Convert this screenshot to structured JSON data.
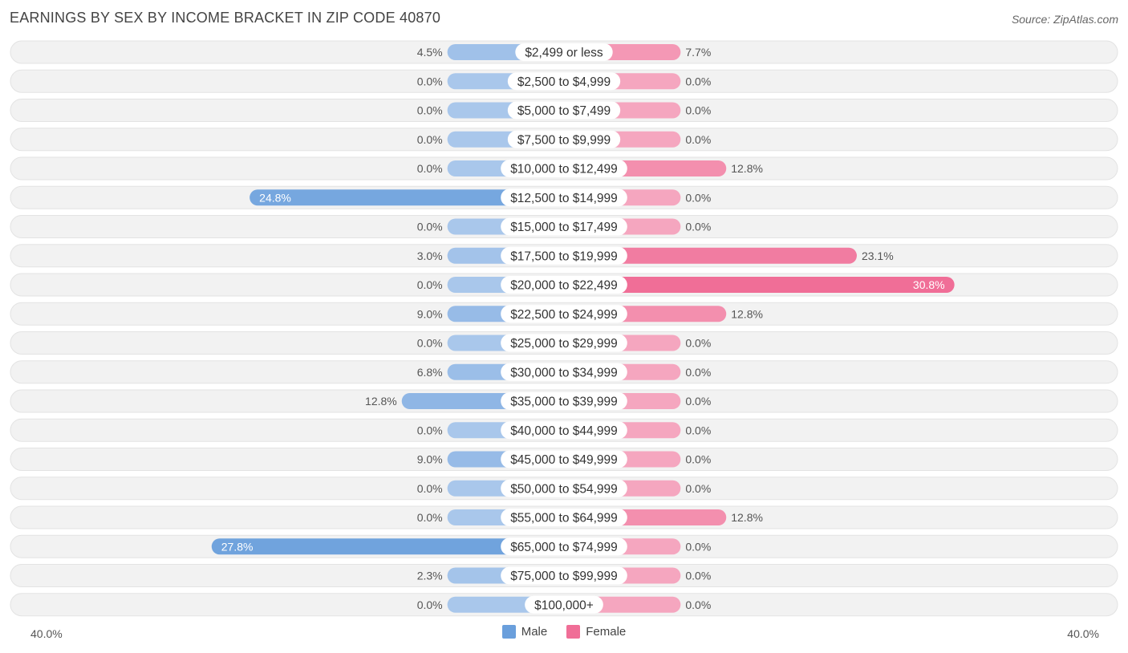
{
  "title": "EARNINGS BY SEX BY INCOME BRACKET IN ZIP CODE 40870",
  "source": "Source: ZipAtlas.com",
  "axis_left_label": "40.0%",
  "axis_right_label": "40.0%",
  "legend": {
    "male": "Male",
    "female": "Female"
  },
  "colors": {
    "male": "#6a9fdc",
    "male_light": "#a9c7eb",
    "female": "#f06e97",
    "female_light": "#f5a6bf",
    "row_bg": "#f2f2f2"
  },
  "chart_data": {
    "type": "bar",
    "orientation": "horizontal-diverging",
    "title": "EARNINGS BY SEX BY INCOME BRACKET IN ZIP CODE 40870",
    "xlim": [
      -40,
      40
    ],
    "categories": [
      "$2,499 or less",
      "$2,500 to $4,999",
      "$5,000 to $7,499",
      "$7,500 to $9,999",
      "$10,000 to $12,499",
      "$12,500 to $14,999",
      "$15,000 to $17,499",
      "$17,500 to $19,999",
      "$20,000 to $22,499",
      "$22,500 to $24,999",
      "$25,000 to $29,999",
      "$30,000 to $34,999",
      "$35,000 to $39,999",
      "$40,000 to $44,999",
      "$45,000 to $49,999",
      "$50,000 to $54,999",
      "$55,000 to $64,999",
      "$65,000 to $74,999",
      "$75,000 to $99,999",
      "$100,000+"
    ],
    "series": [
      {
        "name": "Male",
        "values": [
          4.5,
          0.0,
          0.0,
          0.0,
          0.0,
          24.8,
          0.0,
          3.0,
          0.0,
          9.0,
          0.0,
          6.8,
          12.8,
          0.0,
          9.0,
          0.0,
          0.0,
          27.8,
          2.3,
          0.0
        ],
        "labels": [
          "4.5%",
          "0.0%",
          "0.0%",
          "0.0%",
          "0.0%",
          "24.8%",
          "0.0%",
          "3.0%",
          "0.0%",
          "9.0%",
          "0.0%",
          "6.8%",
          "12.8%",
          "0.0%",
          "9.0%",
          "0.0%",
          "0.0%",
          "27.8%",
          "2.3%",
          "0.0%"
        ]
      },
      {
        "name": "Female",
        "values": [
          7.7,
          0.0,
          0.0,
          0.0,
          12.8,
          0.0,
          0.0,
          23.1,
          30.8,
          12.8,
          0.0,
          0.0,
          0.0,
          0.0,
          0.0,
          0.0,
          12.8,
          0.0,
          0.0,
          0.0
        ],
        "labels": [
          "7.7%",
          "0.0%",
          "0.0%",
          "0.0%",
          "12.8%",
          "0.0%",
          "0.0%",
          "23.1%",
          "30.8%",
          "12.8%",
          "0.0%",
          "0.0%",
          "0.0%",
          "0.0%",
          "0.0%",
          "0.0%",
          "12.8%",
          "0.0%",
          "0.0%",
          "0.0%"
        ]
      }
    ]
  }
}
